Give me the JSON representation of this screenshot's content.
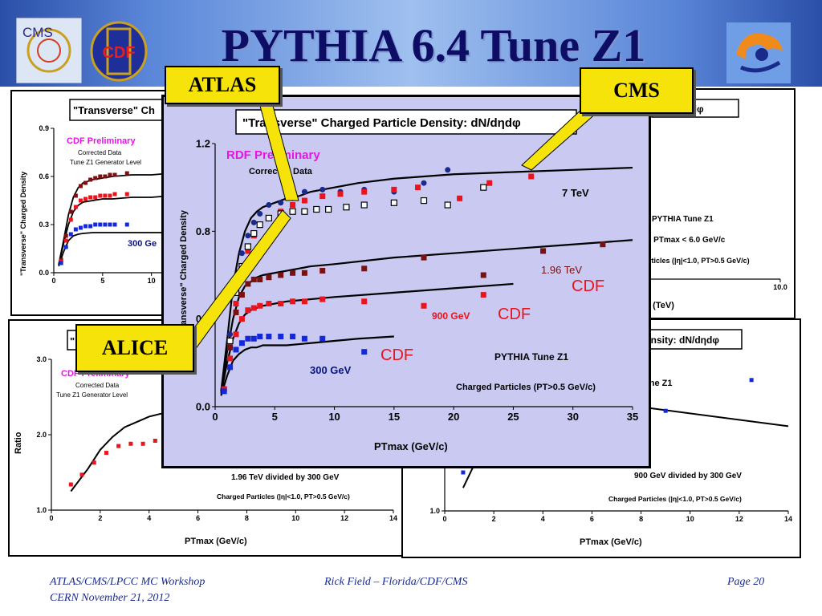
{
  "slide": {
    "title": "PYTHIA 6.4 Tune Z1",
    "logos": {
      "cms": "CMS",
      "cdf": "CDF"
    },
    "callouts": {
      "atlas": "ATLAS",
      "cms": "CMS",
      "alice": "ALICE"
    },
    "footer": {
      "left_line1": "ATLAS/CMS/LPCC MC Workshop",
      "left_line2": "CERN November 21, 2012",
      "center": "Rick Field – Florida/CDF/CMS",
      "right": "Page 20"
    }
  },
  "colors": {
    "black": "#000000",
    "darkred": "#7a1010",
    "red": "#e8141e",
    "blue": "#1428d8",
    "navy": "#0a1480",
    "magenta": "#e614e6",
    "overlay_bg": "#c9c9f2"
  },
  "chart_data": [
    {
      "id": "cdf-density",
      "type": "scatter",
      "title": "\"Transverse\" Ch",
      "ylabel": "\"Transverse\" Charged Density",
      "xlim": [
        0,
        12
      ],
      "ylim": [
        0,
        0.9
      ],
      "xticks": [
        "0",
        "5",
        "10"
      ],
      "yticks": [
        "0.0",
        "0.3",
        "0.6",
        "0.9"
      ],
      "annotations": {
        "preliminary": "CDF Preliminary",
        "line1": "Corrected Data",
        "line2": "Tune Z1 Generator Level",
        "energy": "300 Ge"
      },
      "series": [
        {
          "color": "#7a1010",
          "x": [
            0.75,
            1.25,
            1.75,
            2.25,
            2.75,
            3.25,
            3.75,
            4.25,
            4.75,
            5.25,
            5.75,
            6.25,
            7.5
          ],
          "y": [
            0.08,
            0.23,
            0.38,
            0.48,
            0.54,
            0.56,
            0.58,
            0.59,
            0.6,
            0.6,
            0.61,
            0.61,
            0.62
          ]
        },
        {
          "color": "#e8141e",
          "x": [
            0.75,
            1.25,
            1.75,
            2.25,
            2.75,
            3.25,
            3.75,
            4.25,
            4.75,
            5.25,
            5.75,
            6.25,
            7.5
          ],
          "y": [
            0.07,
            0.2,
            0.33,
            0.41,
            0.45,
            0.46,
            0.47,
            0.47,
            0.48,
            0.48,
            0.48,
            0.49,
            0.49
          ]
        },
        {
          "color": "#1428d8",
          "x": [
            0.75,
            1.25,
            1.75,
            2.25,
            2.75,
            3.25,
            3.75,
            4.25,
            4.75,
            5.25,
            5.75,
            6.25,
            7.5
          ],
          "y": [
            0.06,
            0.16,
            0.24,
            0.27,
            0.28,
            0.29,
            0.29,
            0.3,
            0.3,
            0.3,
            0.3,
            0.3,
            0.3
          ]
        }
      ],
      "curves": [
        {
          "x": [
            0.5,
            1,
            1.5,
            2,
            2.5,
            3,
            4,
            5,
            6,
            8,
            10,
            12
          ],
          "y": [
            0.05,
            0.2,
            0.36,
            0.47,
            0.53,
            0.56,
            0.58,
            0.59,
            0.6,
            0.61,
            0.61,
            0.62
          ]
        },
        {
          "x": [
            0.5,
            1,
            1.5,
            2,
            2.5,
            3,
            4,
            5,
            6,
            8,
            10,
            12
          ],
          "y": [
            0.05,
            0.18,
            0.3,
            0.38,
            0.42,
            0.44,
            0.45,
            0.46,
            0.46,
            0.47,
            0.47,
            0.48
          ]
        },
        {
          "x": [
            0.5,
            1,
            1.5,
            2,
            2.5,
            3,
            4,
            5,
            6,
            8,
            10,
            12
          ],
          "y": [
            0.04,
            0.13,
            0.2,
            0.23,
            0.24,
            0.245,
            0.25,
            0.25,
            0.25,
            0.25,
            0.25,
            0.25
          ]
        }
      ]
    },
    {
      "id": "cms-density",
      "type": "scatter",
      "title": "N/dηdφ",
      "xlabel": "y  (TeV)",
      "xlim": [
        0,
        10
      ],
      "ylim": [
        0,
        0.9
      ],
      "xticks": [
        "10.0"
      ],
      "annotations": {
        "tune": "PYTHIA Tune Z1",
        "cut": ": PTmax < 6.0 GeV/c",
        "particles": "rticles (|η|<1.0, PT>0.5 GeV/c)"
      },
      "series": [
        {
          "color": "#e8141e",
          "x": [
            0.8
          ],
          "y": [
            0.78
          ]
        },
        {
          "color": "#000000",
          "x": [
            0.8
          ],
          "y": [
            0.8
          ]
        }
      ]
    },
    {
      "id": "ratio-196-300",
      "type": "scatter",
      "ylabel": "Ratio",
      "xlabel": "PTmax  (GeV/c)",
      "xlim": [
        0,
        14
      ],
      "ylim": [
        1.0,
        3.0
      ],
      "xticks": [
        "0",
        "2",
        "4",
        "6",
        "8",
        "10",
        "12",
        "14"
      ],
      "yticks": [
        "1.0",
        "2.0",
        "3.0"
      ],
      "annotations": {
        "preliminary": "CDF Preliminary",
        "line1": "Corrected Data",
        "line2": "Tune Z1 Generator Level",
        "division": "1.96 TeV divided by 300 GeV",
        "particles": "Charged Particles (|η|<1.0, PT>0.5 GeV/c)"
      },
      "series": [
        {
          "color": "#e8141e",
          "x": [
            0.8,
            1.25,
            1.75,
            2.25,
            2.75,
            3.25,
            3.75,
            4.25
          ],
          "y": [
            1.34,
            1.47,
            1.63,
            1.76,
            1.85,
            1.88,
            1.88,
            1.92
          ]
        }
      ],
      "curves": [
        {
          "x": [
            0.8,
            1.5,
            2,
            2.5,
            3,
            3.5,
            4,
            4.5
          ],
          "y": [
            1.25,
            1.55,
            1.8,
            1.97,
            2.1,
            2.17,
            2.24,
            2.28
          ]
        }
      ]
    },
    {
      "id": "ratio-900-300",
      "type": "scatter",
      "title": "ensity: dN/dηdφ",
      "xlabel": "PTmax  (GeV/c)",
      "xlim": [
        0,
        14
      ],
      "ylim": [
        1.0,
        3.0
      ],
      "xticks": [
        "0",
        "2",
        "4",
        "6",
        "8",
        "10",
        "12",
        "14"
      ],
      "yticks": [
        "1.0"
      ],
      "annotations": {
        "tune": "une Z1",
        "division": "900 GeV divided by 300 GeV",
        "particles": "Charged Particles (|η|<1.0, PT>0.5 GeV/c)"
      },
      "series": [
        {
          "color": "#1428d8",
          "x": [
            0.75,
            9,
            12.5
          ],
          "y": [
            1.5,
            2.3,
            2.7
          ]
        }
      ],
      "curves": [
        {
          "x": [
            0.75,
            1.2,
            8,
            14
          ],
          "y": [
            1.3,
            1.6,
            2.35,
            2.1
          ]
        }
      ]
    },
    {
      "id": "overlay-density",
      "type": "scatter",
      "title": "\"Transverse\" Charged Particle Density: dN/dηdφ",
      "ylabel": "\"Transverse\" Charged Density",
      "xlabel": "PTmax  (GeV/c)",
      "xlim": [
        0,
        35
      ],
      "ylim": [
        0,
        1.2
      ],
      "xticks": [
        "0",
        "5",
        "10",
        "15",
        "20",
        "25",
        "30",
        "35"
      ],
      "yticks": [
        "0.0",
        "0.4",
        "0.8",
        "1.2"
      ],
      "annotations": {
        "preliminary": "RDF Preliminary",
        "corrected": "Corrected Data",
        "tune": "PYTHIA Tune Z1",
        "particles": "Charged Particles (PT>0.5 GeV/c)",
        "e7": "7 TeV",
        "e196": "1.96 TeV",
        "e900": "900 GeV",
        "e300": "300 GeV",
        "cdf": "CDF"
      },
      "series": [
        {
          "name": "7 TeV",
          "color": "#1a2a8a",
          "marker": "circle",
          "x": [
            0.75,
            1.25,
            1.75,
            2.25,
            2.75,
            3.25,
            3.75,
            4.5,
            5.5,
            6.5,
            7.5,
            9,
            10.5,
            12.5,
            15,
            17.5,
            19.5
          ],
          "y": [
            0.08,
            0.33,
            0.56,
            0.7,
            0.78,
            0.84,
            0.88,
            0.92,
            0.93,
            0.95,
            0.98,
            0.99,
            0.98,
            0.99,
            0.98,
            1.02,
            1.08
          ]
        },
        {
          "name": "7 TeV CMS",
          "color": "#e8141e",
          "marker": "square",
          "x": [
            1.25,
            1.75,
            2.25,
            2.75,
            3.25,
            3.75,
            4.5,
            5.5,
            6.5,
            7.5,
            9,
            10.5,
            12.5,
            15,
            17,
            20.5,
            23,
            26.5
          ],
          "y": [
            0.28,
            0.47,
            0.62,
            0.71,
            0.78,
            0.83,
            0.86,
            0.89,
            0.92,
            0.94,
            0.96,
            0.97,
            0.98,
            0.99,
            1.0,
            0.95,
            1.02,
            1.05
          ]
        },
        {
          "name": "7 TeV open",
          "color": "#000000",
          "marker": "open",
          "x": [
            1.25,
            1.75,
            2.25,
            2.75,
            3.25,
            3.75,
            4.5,
            5.5,
            6.5,
            7.5,
            8.5,
            9.5,
            11,
            12.5,
            15,
            17.5,
            19.5,
            22.5
          ],
          "y": [
            0.3,
            0.52,
            0.64,
            0.73,
            0.79,
            0.83,
            0.86,
            0.88,
            0.89,
            0.89,
            0.9,
            0.9,
            0.91,
            0.92,
            0.93,
            0.94,
            0.92,
            1.0
          ]
        },
        {
          "name": "1.96 TeV",
          "color": "#7a1010",
          "marker": "square",
          "x": [
            0.75,
            1.25,
            1.75,
            2.25,
            2.75,
            3.25,
            3.75,
            4.5,
            5.5,
            6.5,
            7.5,
            9,
            12.5,
            17.5,
            22.5,
            27.5,
            32.5
          ],
          "y": [
            0.08,
            0.27,
            0.43,
            0.51,
            0.56,
            0.58,
            0.58,
            0.59,
            0.6,
            0.61,
            0.61,
            0.62,
            0.63,
            0.68,
            0.6,
            0.71,
            0.74
          ]
        },
        {
          "name": "900 GeV",
          "color": "#e8141e",
          "marker": "square",
          "x": [
            0.75,
            1.25,
            1.75,
            2.25,
            2.75,
            3.25,
            3.75,
            4.5,
            5.5,
            6.5,
            7.5,
            9,
            12.5,
            17.5,
            22.5
          ],
          "y": [
            0.08,
            0.22,
            0.33,
            0.4,
            0.44,
            0.45,
            0.46,
            0.47,
            0.47,
            0.48,
            0.48,
            0.49,
            0.48,
            0.46,
            0.51
          ]
        },
        {
          "name": "300 GeV",
          "color": "#1428d8",
          "marker": "square",
          "x": [
            0.75,
            1.25,
            1.75,
            2.25,
            2.75,
            3.25,
            3.75,
            4.5,
            5.5,
            6.5,
            7.5,
            9,
            12.5
          ],
          "y": [
            0.07,
            0.18,
            0.26,
            0.29,
            0.31,
            0.31,
            0.32,
            0.32,
            0.32,
            0.32,
            0.31,
            0.31,
            0.25
          ]
        }
      ],
      "curves": [
        {
          "x": [
            0.5,
            1,
            1.5,
            2,
            2.5,
            3,
            3.5,
            4,
            5,
            6,
            7,
            8,
            10,
            12,
            15,
            20,
            25,
            30,
            35
          ],
          "y": [
            0.07,
            0.3,
            0.55,
            0.7,
            0.8,
            0.86,
            0.89,
            0.91,
            0.93,
            0.95,
            0.96,
            0.98,
            1.0,
            1.02,
            1.04,
            1.06,
            1.07,
            1.08,
            1.09
          ]
        },
        {
          "x": [
            0.5,
            1,
            1.5,
            2,
            2.5,
            3,
            3.5,
            4,
            5,
            6,
            8,
            10,
            15,
            20,
            25,
            30,
            35
          ],
          "y": [
            0.07,
            0.25,
            0.4,
            0.5,
            0.55,
            0.57,
            0.59,
            0.6,
            0.61,
            0.62,
            0.64,
            0.65,
            0.68,
            0.7,
            0.72,
            0.74,
            0.76
          ]
        },
        {
          "x": [
            0.5,
            1,
            1.5,
            2,
            2.5,
            3,
            3.5,
            4,
            5,
            6,
            8,
            10,
            15,
            20,
            25
          ],
          "y": [
            0.06,
            0.2,
            0.31,
            0.38,
            0.42,
            0.44,
            0.45,
            0.46,
            0.47,
            0.48,
            0.49,
            0.5,
            0.52,
            0.54,
            0.56
          ]
        },
        {
          "x": [
            0.5,
            1,
            1.5,
            2,
            2.5,
            3,
            3.5,
            4,
            5,
            6,
            8,
            10,
            12,
            15
          ],
          "y": [
            0.05,
            0.14,
            0.21,
            0.24,
            0.26,
            0.27,
            0.27,
            0.28,
            0.28,
            0.28,
            0.29,
            0.3,
            0.31,
            0.32
          ]
        }
      ]
    }
  ]
}
